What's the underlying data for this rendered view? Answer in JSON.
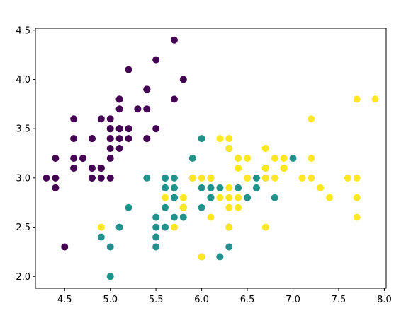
{
  "chart_data": {
    "type": "scatter",
    "title": "",
    "xlabel": "",
    "ylabel": "",
    "xlim": [
      4.18,
      8.02
    ],
    "ylim": [
      1.88,
      4.52
    ],
    "xticks": [
      4.5,
      5.0,
      5.5,
      6.0,
      6.5,
      7.0,
      7.5,
      8.0
    ],
    "yticks": [
      2.0,
      2.5,
      3.0,
      3.5,
      4.0,
      4.5
    ],
    "xtick_labels": [
      "4.5",
      "5.0",
      "5.5",
      "6.0",
      "6.5",
      "7.0",
      "7.5",
      "8.0"
    ],
    "ytick_labels": [
      "2.0",
      "2.5",
      "3.0",
      "3.5",
      "4.0",
      "4.5"
    ],
    "grid": false,
    "legend": "none",
    "series": [
      {
        "color": "#440154",
        "points": [
          [
            5.1,
            3.5
          ],
          [
            4.9,
            3.0
          ],
          [
            4.7,
            3.2
          ],
          [
            4.6,
            3.1
          ],
          [
            5.0,
            3.6
          ],
          [
            5.4,
            3.9
          ],
          [
            4.6,
            3.4
          ],
          [
            5.0,
            3.4
          ],
          [
            4.4,
            2.9
          ],
          [
            4.9,
            3.1
          ],
          [
            5.4,
            3.7
          ],
          [
            4.8,
            3.4
          ],
          [
            4.8,
            3.0
          ],
          [
            4.3,
            3.0
          ],
          [
            5.8,
            4.0
          ],
          [
            5.7,
            4.4
          ],
          [
            5.4,
            3.9
          ],
          [
            5.1,
            3.5
          ],
          [
            5.7,
            3.8
          ],
          [
            5.1,
            3.8
          ],
          [
            5.4,
            3.4
          ],
          [
            5.1,
            3.7
          ],
          [
            4.6,
            3.6
          ],
          [
            5.1,
            3.3
          ],
          [
            4.8,
            3.4
          ],
          [
            5.0,
            3.0
          ],
          [
            5.0,
            3.4
          ],
          [
            5.2,
            3.5
          ],
          [
            5.2,
            3.4
          ],
          [
            4.7,
            3.2
          ],
          [
            4.8,
            3.1
          ],
          [
            5.4,
            3.4
          ],
          [
            5.2,
            4.1
          ],
          [
            5.5,
            4.2
          ],
          [
            4.9,
            3.1
          ],
          [
            5.0,
            3.2
          ],
          [
            5.5,
            3.5
          ],
          [
            4.9,
            3.6
          ],
          [
            4.4,
            3.0
          ],
          [
            5.1,
            3.4
          ],
          [
            5.0,
            3.5
          ],
          [
            4.5,
            2.3
          ],
          [
            4.4,
            3.2
          ],
          [
            5.0,
            3.5
          ],
          [
            5.1,
            3.8
          ],
          [
            4.8,
            3.0
          ],
          [
            5.1,
            3.8
          ],
          [
            4.6,
            3.2
          ],
          [
            5.3,
            3.7
          ],
          [
            5.0,
            3.3
          ]
        ]
      },
      {
        "color": "#21918c",
        "points": [
          [
            7.0,
            3.2
          ],
          [
            6.4,
            3.2
          ],
          [
            6.9,
            3.1
          ],
          [
            5.5,
            2.3
          ],
          [
            6.5,
            2.8
          ],
          [
            5.7,
            2.8
          ],
          [
            6.3,
            3.3
          ],
          [
            4.9,
            2.4
          ],
          [
            6.6,
            2.9
          ],
          [
            5.2,
            2.7
          ],
          [
            5.0,
            2.0
          ],
          [
            5.9,
            3.0
          ],
          [
            6.0,
            2.2
          ],
          [
            6.1,
            2.9
          ],
          [
            5.6,
            2.9
          ],
          [
            6.7,
            3.1
          ],
          [
            5.6,
            3.0
          ],
          [
            5.8,
            2.7
          ],
          [
            6.2,
            2.2
          ],
          [
            5.6,
            2.5
          ],
          [
            5.9,
            3.2
          ],
          [
            6.1,
            2.8
          ],
          [
            6.3,
            2.5
          ],
          [
            6.1,
            2.8
          ],
          [
            6.4,
            2.9
          ],
          [
            6.6,
            3.0
          ],
          [
            6.8,
            2.8
          ],
          [
            6.7,
            3.0
          ],
          [
            6.0,
            2.9
          ],
          [
            5.7,
            2.6
          ],
          [
            5.5,
            2.4
          ],
          [
            5.5,
            2.4
          ],
          [
            5.8,
            2.7
          ],
          [
            6.0,
            2.7
          ],
          [
            5.4,
            3.0
          ],
          [
            6.0,
            3.4
          ],
          [
            6.7,
            3.1
          ],
          [
            6.3,
            2.3
          ],
          [
            5.6,
            3.0
          ],
          [
            5.5,
            2.5
          ],
          [
            5.5,
            2.6
          ],
          [
            6.1,
            3.0
          ],
          [
            5.8,
            2.6
          ],
          [
            5.0,
            2.3
          ],
          [
            5.6,
            2.7
          ],
          [
            5.7,
            3.0
          ],
          [
            5.7,
            2.9
          ],
          [
            6.2,
            2.9
          ],
          [
            5.1,
            2.5
          ],
          [
            5.7,
            2.8
          ]
        ]
      },
      {
        "color": "#fde725",
        "points": [
          [
            6.3,
            3.3
          ],
          [
            5.8,
            2.7
          ],
          [
            7.1,
            3.0
          ],
          [
            6.3,
            2.9
          ],
          [
            6.5,
            3.0
          ],
          [
            7.6,
            3.0
          ],
          [
            4.9,
            2.5
          ],
          [
            7.3,
            2.9
          ],
          [
            6.7,
            2.5
          ],
          [
            7.2,
            3.6
          ],
          [
            6.5,
            3.2
          ],
          [
            6.4,
            2.7
          ],
          [
            6.8,
            3.0
          ],
          [
            5.7,
            2.5
          ],
          [
            5.8,
            2.8
          ],
          [
            6.4,
            3.2
          ],
          [
            6.5,
            3.0
          ],
          [
            7.7,
            3.8
          ],
          [
            7.7,
            2.6
          ],
          [
            6.0,
            2.2
          ],
          [
            6.9,
            3.2
          ],
          [
            5.6,
            2.8
          ],
          [
            7.7,
            2.8
          ],
          [
            6.3,
            2.7
          ],
          [
            6.7,
            3.3
          ],
          [
            7.2,
            3.2
          ],
          [
            6.2,
            2.8
          ],
          [
            6.1,
            3.0
          ],
          [
            6.4,
            2.8
          ],
          [
            7.2,
            3.0
          ],
          [
            7.4,
            2.8
          ],
          [
            7.9,
            3.8
          ],
          [
            6.4,
            2.8
          ],
          [
            6.3,
            2.8
          ],
          [
            6.1,
            2.6
          ],
          [
            7.7,
            3.0
          ],
          [
            6.3,
            3.4
          ],
          [
            6.4,
            3.1
          ],
          [
            6.0,
            3.0
          ],
          [
            6.9,
            3.1
          ],
          [
            6.7,
            3.1
          ],
          [
            6.9,
            3.1
          ],
          [
            5.8,
            2.7
          ],
          [
            6.8,
            3.2
          ],
          [
            6.7,
            3.3
          ],
          [
            6.7,
            3.0
          ],
          [
            6.3,
            2.5
          ],
          [
            6.5,
            3.0
          ],
          [
            6.2,
            3.4
          ],
          [
            5.9,
            3.0
          ]
        ]
      }
    ]
  }
}
